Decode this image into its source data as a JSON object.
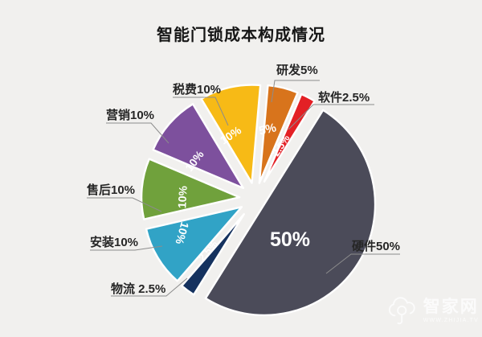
{
  "title": "智能门锁成本构成情况",
  "chart_data": {
    "type": "pie",
    "title": "智能门锁成本构成情况",
    "unit": "%",
    "style": "exploded pie, clockwise from top, thin white gaps between slices",
    "start_angle_deg_clockwise_from_north": 5,
    "slices": [
      {
        "label": "研发",
        "value": 5,
        "pct": "5%",
        "callout": "研发5%",
        "color": "#D8741C"
      },
      {
        "label": "软件",
        "value": 2.5,
        "pct": "2.5%",
        "callout": "软件2.5%",
        "color": "#E32025"
      },
      {
        "label": "硬件",
        "value": 50,
        "pct": "50%",
        "callout": "硬件50%",
        "color": "#4B4B59"
      },
      {
        "label": "物流",
        "value": 2.5,
        "pct": "2.5%",
        "callout": "物流 2.5%",
        "color": "#15325F"
      },
      {
        "label": "安装",
        "value": 10,
        "pct": "10%",
        "callout": "安装10%",
        "color": "#31A3C6"
      },
      {
        "label": "售后",
        "value": 10,
        "pct": "10%",
        "callout": "售后10%",
        "color": "#70A13C"
      },
      {
        "label": "营销",
        "value": 10,
        "pct": "10%",
        "callout": "营销10%",
        "color": "#7D509D"
      },
      {
        "label": "税费",
        "value": 10,
        "pct": "10%",
        "callout": "税费10%",
        "color": "#F7BA16"
      }
    ],
    "legend": "none (leader-line callouts)",
    "colors": {
      "background": "#F1F0EE",
      "title_text": "#161616",
      "callout_text": "#262626",
      "leader_line": "#8C8C8C",
      "inside_label_text": "#FFFFFF"
    }
  },
  "watermark": {
    "name": "智家网",
    "url": "WWW.ZHIJIA.TV"
  }
}
